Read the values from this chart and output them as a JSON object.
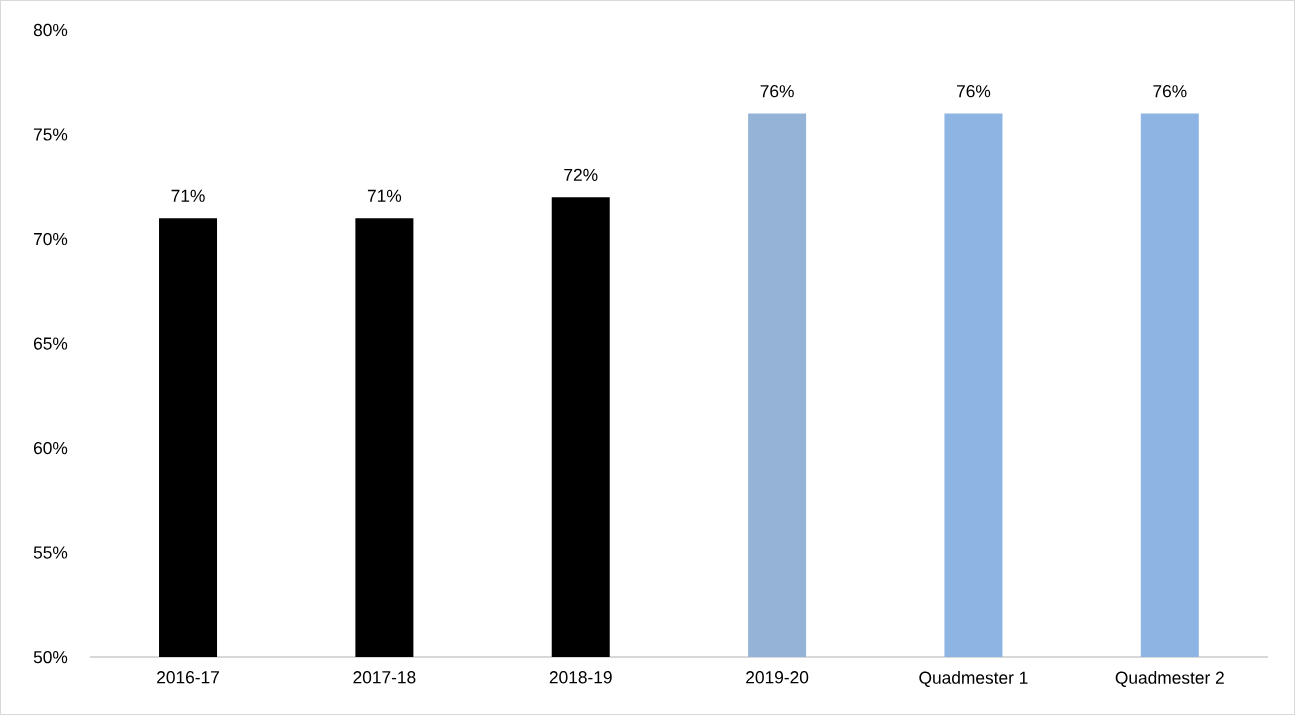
{
  "chart_data": {
    "type": "bar",
    "categories": [
      "2016-17",
      "2017-18",
      "2018-19",
      "2019-20",
      "Quadmester 1",
      "Quadmester 2"
    ],
    "values": [
      71,
      71,
      72,
      76,
      76,
      76
    ],
    "colors": [
      "#000000",
      "#000000",
      "#000000",
      "#95b3d7",
      "#8db4e2",
      "#8db4e2"
    ],
    "value_labels": [
      "71%",
      "71%",
      "72%",
      "76%",
      "76%",
      "76%"
    ],
    "ylim": [
      50,
      80
    ],
    "yticks": [
      {
        "value": 50,
        "label": "50%"
      },
      {
        "value": 55,
        "label": "55%"
      },
      {
        "value": 60,
        "label": "60%"
      },
      {
        "value": 65,
        "label": "65%"
      },
      {
        "value": 70,
        "label": "70%"
      },
      {
        "value": 75,
        "label": "75%"
      },
      {
        "value": 80,
        "label": "80%"
      }
    ]
  }
}
